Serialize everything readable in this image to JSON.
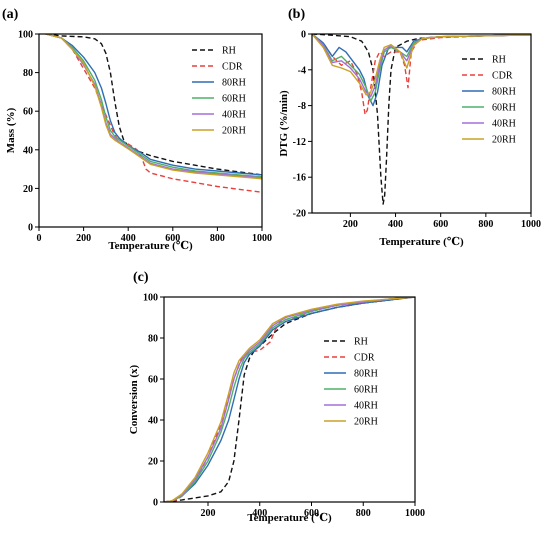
{
  "palette": {
    "RH": "#111111",
    "CDR": "#e8403c",
    "80RH": "#2f6db5",
    "60RH": "#4fb068",
    "40RH": "#a66fd8",
    "20RH": "#c9a227"
  },
  "chart_data": [
    {
      "id": "a",
      "panel_label": "(a)",
      "type": "line",
      "xlabel": "Temperature (℃)",
      "ylabel": "Mass (%)",
      "xlim": [
        0,
        1000
      ],
      "ylim": [
        0,
        100
      ],
      "xticks": [
        0,
        200,
        400,
        600,
        800,
        1000
      ],
      "yticks": [
        0,
        20,
        40,
        60,
        80,
        100
      ],
      "legend_position": "top-right",
      "series": [
        {
          "name": "RH",
          "dash": true,
          "x": [
            30,
            100,
            200,
            250,
            280,
            300,
            320,
            340,
            360,
            380,
            400,
            450,
            500,
            600,
            700,
            800,
            900,
            1000
          ],
          "y": [
            100,
            99,
            98.5,
            97.5,
            95,
            90,
            80,
            65,
            52,
            45,
            42,
            39,
            37,
            34,
            32,
            30,
            28.5,
            27
          ]
        },
        {
          "name": "CDR",
          "dash": true,
          "x": [
            30,
            100,
            150,
            200,
            250,
            300,
            330,
            350,
            400,
            440,
            460,
            480,
            500,
            600,
            700,
            800,
            900,
            1000
          ],
          "y": [
            100,
            98,
            92,
            82,
            72,
            58,
            50,
            46,
            43,
            40,
            36,
            30,
            28,
            25,
            23,
            21,
            19.5,
            18
          ]
        },
        {
          "name": "80RH",
          "dash": false,
          "x": [
            30,
            100,
            150,
            200,
            250,
            280,
            300,
            320,
            340,
            360,
            380,
            400,
            450,
            500,
            600,
            700,
            800,
            900,
            1000
          ],
          "y": [
            100,
            98,
            94,
            88,
            80,
            72,
            64,
            55,
            49,
            46,
            44,
            42,
            39,
            35,
            32,
            30,
            29,
            28,
            27
          ]
        },
        {
          "name": "60RH",
          "dash": false,
          "x": [
            30,
            100,
            150,
            200,
            250,
            280,
            300,
            320,
            340,
            360,
            400,
            450,
            500,
            600,
            700,
            800,
            900,
            1000
          ],
          "y": [
            100,
            98,
            93,
            86,
            76,
            66,
            57,
            50,
            47,
            45,
            42,
            38,
            34,
            31,
            29,
            28,
            27,
            26
          ]
        },
        {
          "name": "40RH",
          "dash": false,
          "x": [
            30,
            100,
            150,
            200,
            250,
            280,
            300,
            320,
            340,
            360,
            400,
            450,
            500,
            600,
            700,
            800,
            900,
            1000
          ],
          "y": [
            100,
            98,
            92,
            84,
            74,
            63,
            54,
            48,
            46,
            44,
            41,
            37,
            33,
            30,
            28.5,
            27.5,
            26.5,
            25.5
          ]
        },
        {
          "name": "20RH",
          "dash": false,
          "x": [
            30,
            100,
            150,
            200,
            250,
            280,
            300,
            320,
            340,
            360,
            400,
            450,
            500,
            600,
            700,
            800,
            900,
            1000
          ],
          "y": [
            100,
            98,
            92,
            85,
            73,
            62,
            53,
            47,
            45,
            43.5,
            40.5,
            36.5,
            32.5,
            29.5,
            28,
            27,
            26,
            25
          ]
        }
      ]
    },
    {
      "id": "b",
      "panel_label": "(b)",
      "type": "line",
      "xlabel": "Temperature (℃)",
      "ylabel": "DTG (%/min)",
      "xlim": [
        30,
        1000
      ],
      "ylim": [
        -20,
        0
      ],
      "xticks": [
        200,
        400,
        600,
        800,
        1000
      ],
      "yticks": [
        0,
        -4,
        -8,
        -12,
        -16,
        -20
      ],
      "legend_position": "bottom-right",
      "series": [
        {
          "name": "RH",
          "dash": true,
          "x": [
            30,
            100,
            200,
            250,
            280,
            300,
            320,
            335,
            345,
            352,
            360,
            370,
            380,
            400,
            450,
            500,
            600,
            800,
            1000
          ],
          "y": [
            0,
            -0.1,
            -0.3,
            -0.8,
            -2,
            -4,
            -9,
            -16,
            -19,
            -18,
            -14,
            -8,
            -4,
            -1.5,
            -0.8,
            -0.5,
            -0.3,
            -0.2,
            -0.1
          ]
        },
        {
          "name": "CDR",
          "dash": true,
          "x": [
            30,
            80,
            120,
            160,
            200,
            230,
            250,
            265,
            275,
            290,
            310,
            330,
            350,
            380,
            420,
            440,
            455,
            470,
            500,
            600,
            800,
            1000
          ],
          "y": [
            0,
            -1,
            -2.5,
            -3.5,
            -3,
            -4.5,
            -6.5,
            -9,
            -8.5,
            -6,
            -3,
            -2,
            -2.5,
            -2,
            -2,
            -3.5,
            -6,
            -2,
            -0.7,
            -0.4,
            -0.2,
            -0.1
          ]
        },
        {
          "name": "80RH",
          "dash": false,
          "x": [
            30,
            80,
            120,
            150,
            180,
            210,
            240,
            260,
            280,
            300,
            320,
            340,
            370,
            400,
            430,
            450,
            480,
            520,
            600,
            800,
            1000
          ],
          "y": [
            0,
            -1,
            -2.5,
            -1.5,
            -2,
            -3,
            -4,
            -5,
            -7,
            -8,
            -6.5,
            -3.5,
            -1.5,
            -1.5,
            -1.5,
            -2,
            -0.8,
            -0.5,
            -0.3,
            -0.2,
            -0.1
          ]
        },
        {
          "name": "60RH",
          "dash": false,
          "x": [
            30,
            80,
            120,
            160,
            200,
            240,
            270,
            290,
            310,
            330,
            350,
            380,
            420,
            450,
            480,
            520,
            600,
            800,
            1000
          ],
          "y": [
            0,
            -1.2,
            -3,
            -2.5,
            -3.5,
            -4.5,
            -6,
            -7.5,
            -6.5,
            -4,
            -2,
            -1.5,
            -2,
            -2.5,
            -1,
            -0.5,
            -0.3,
            -0.2,
            -0.1
          ]
        },
        {
          "name": "40RH",
          "dash": false,
          "x": [
            30,
            80,
            120,
            160,
            200,
            240,
            270,
            290,
            310,
            330,
            350,
            380,
            420,
            450,
            480,
            520,
            600,
            800,
            1000
          ],
          "y": [
            0,
            -1.3,
            -3.2,
            -3,
            -3.8,
            -5,
            -6.5,
            -7,
            -5.8,
            -3.5,
            -1.8,
            -1.3,
            -2,
            -3,
            -1.2,
            -0.5,
            -0.3,
            -0.2,
            -0.1
          ]
        },
        {
          "name": "20RH",
          "dash": false,
          "x": [
            30,
            80,
            120,
            160,
            200,
            240,
            270,
            290,
            310,
            330,
            350,
            380,
            420,
            450,
            480,
            520,
            600,
            800,
            1000
          ],
          "y": [
            0,
            -1.5,
            -3.5,
            -3.8,
            -4.2,
            -5.5,
            -6.8,
            -6.5,
            -5,
            -3,
            -1.5,
            -1.2,
            -2,
            -3.8,
            -1.3,
            -0.5,
            -0.3,
            -0.2,
            -0.1
          ]
        }
      ]
    },
    {
      "id": "c",
      "panel_label": "(c)",
      "type": "line",
      "xlabel": "Temperature (℃)",
      "ylabel": "Conversion (x)",
      "xlim": [
        30,
        1000
      ],
      "ylim": [
        0,
        100
      ],
      "xticks": [
        200,
        400,
        600,
        800,
        1000
      ],
      "yticks": [
        0,
        20,
        40,
        60,
        80,
        100
      ],
      "legend_position": "center-right",
      "series": [
        {
          "name": "RH",
          "dash": true,
          "x": [
            30,
            100,
            150,
            200,
            250,
            280,
            300,
            320,
            340,
            360,
            380,
            400,
            450,
            500,
            600,
            700,
            800,
            900,
            1000
          ],
          "y": [
            0,
            1,
            2,
            3,
            5,
            10,
            20,
            40,
            62,
            70,
            74,
            76,
            82,
            87,
            92,
            95,
            97,
            98.5,
            100
          ]
        },
        {
          "name": "CDR",
          "dash": true,
          "x": [
            30,
            80,
            100,
            150,
            200,
            250,
            300,
            330,
            360,
            400,
            440,
            460,
            480,
            500,
            600,
            700,
            800,
            900,
            1000
          ],
          "y": [
            0,
            1,
            3,
            10,
            22,
            38,
            60,
            70,
            73,
            74,
            78,
            84,
            88,
            89,
            92,
            95,
            97,
            99,
            100
          ]
        },
        {
          "name": "80RH",
          "dash": false,
          "x": [
            30,
            60,
            100,
            150,
            200,
            250,
            280,
            300,
            320,
            340,
            360,
            400,
            450,
            500,
            600,
            700,
            800,
            900,
            1000
          ],
          "y": [
            0,
            0.5,
            3,
            9,
            18,
            30,
            40,
            50,
            60,
            68,
            72,
            76,
            84,
            88,
            92,
            95,
            97,
            98.5,
            100
          ]
        },
        {
          "name": "60RH",
          "dash": false,
          "x": [
            30,
            60,
            100,
            150,
            200,
            250,
            280,
            300,
            320,
            340,
            360,
            400,
            450,
            500,
            600,
            700,
            800,
            900,
            1000
          ],
          "y": [
            0,
            0.5,
            3,
            10,
            20,
            34,
            46,
            56,
            64,
            70,
            73,
            77,
            85,
            89,
            93,
            96,
            97.5,
            99,
            100
          ]
        },
        {
          "name": "40RH",
          "dash": false,
          "x": [
            30,
            60,
            100,
            150,
            200,
            250,
            280,
            300,
            320,
            340,
            360,
            400,
            450,
            500,
            600,
            700,
            800,
            900,
            1000
          ],
          "y": [
            0,
            0.5,
            3.5,
            11,
            22,
            36,
            50,
            60,
            67,
            71,
            74,
            78,
            86,
            90,
            93.5,
            96,
            97.5,
            99,
            100
          ]
        },
        {
          "name": "20RH",
          "dash": false,
          "x": [
            30,
            60,
            100,
            150,
            200,
            250,
            280,
            300,
            320,
            340,
            360,
            400,
            450,
            500,
            600,
            700,
            800,
            900,
            1000
          ],
          "y": [
            0,
            0.5,
            4,
            12,
            24,
            39,
            53,
            63,
            69,
            72,
            75,
            79,
            87,
            90.5,
            94,
            96.5,
            98,
            99,
            100
          ]
        }
      ]
    }
  ]
}
